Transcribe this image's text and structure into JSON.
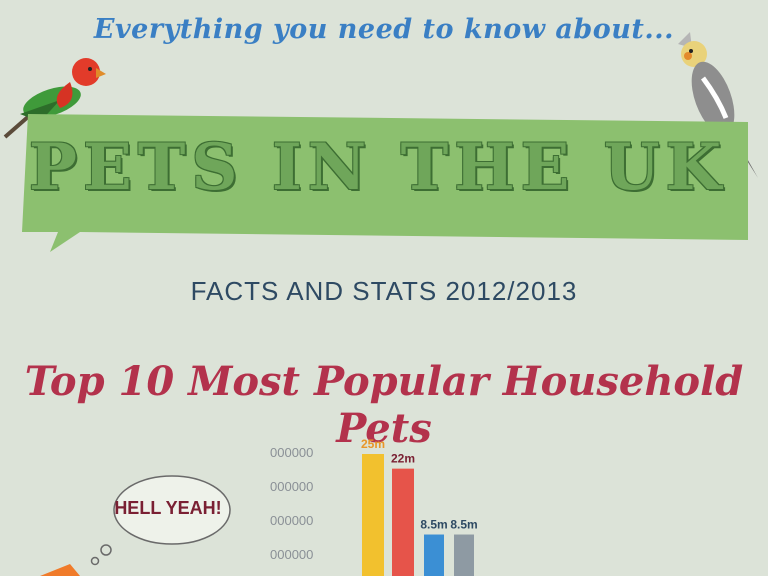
{
  "header": {
    "tagline": "Everything you need to know about...",
    "title": "PETS IN THE UK",
    "subtitle": "FACTS AND STATS 2012/2013"
  },
  "section": {
    "title": "Top 10 Most Popular Household Pets"
  },
  "bubble": {
    "text": "HELL YEAH!"
  },
  "colors": {
    "background": "#dce3d8",
    "banner_green": "#8cc06f",
    "tagline_blue": "#3a7fc4",
    "section_red": "#b3324c"
  },
  "chart_data": {
    "type": "bar",
    "title": "",
    "xlabel": "",
    "ylabel": "",
    "y_tick_labels": [
      "000000",
      "000000",
      "000000",
      "000000"
    ],
    "values": [
      25,
      22,
      8.5,
      8.5
    ],
    "data_labels": [
      "25m",
      "22m",
      "8.5m",
      "8.5m"
    ],
    "bar_colors": [
      "#f2c12e",
      "#e6544a",
      "#3b8fd4",
      "#8e9aa3"
    ],
    "label_colors": [
      "#e8962a",
      "#7a2033",
      "#2e4a63",
      "#2e4a63"
    ],
    "ylim": [
      0,
      25
    ]
  }
}
